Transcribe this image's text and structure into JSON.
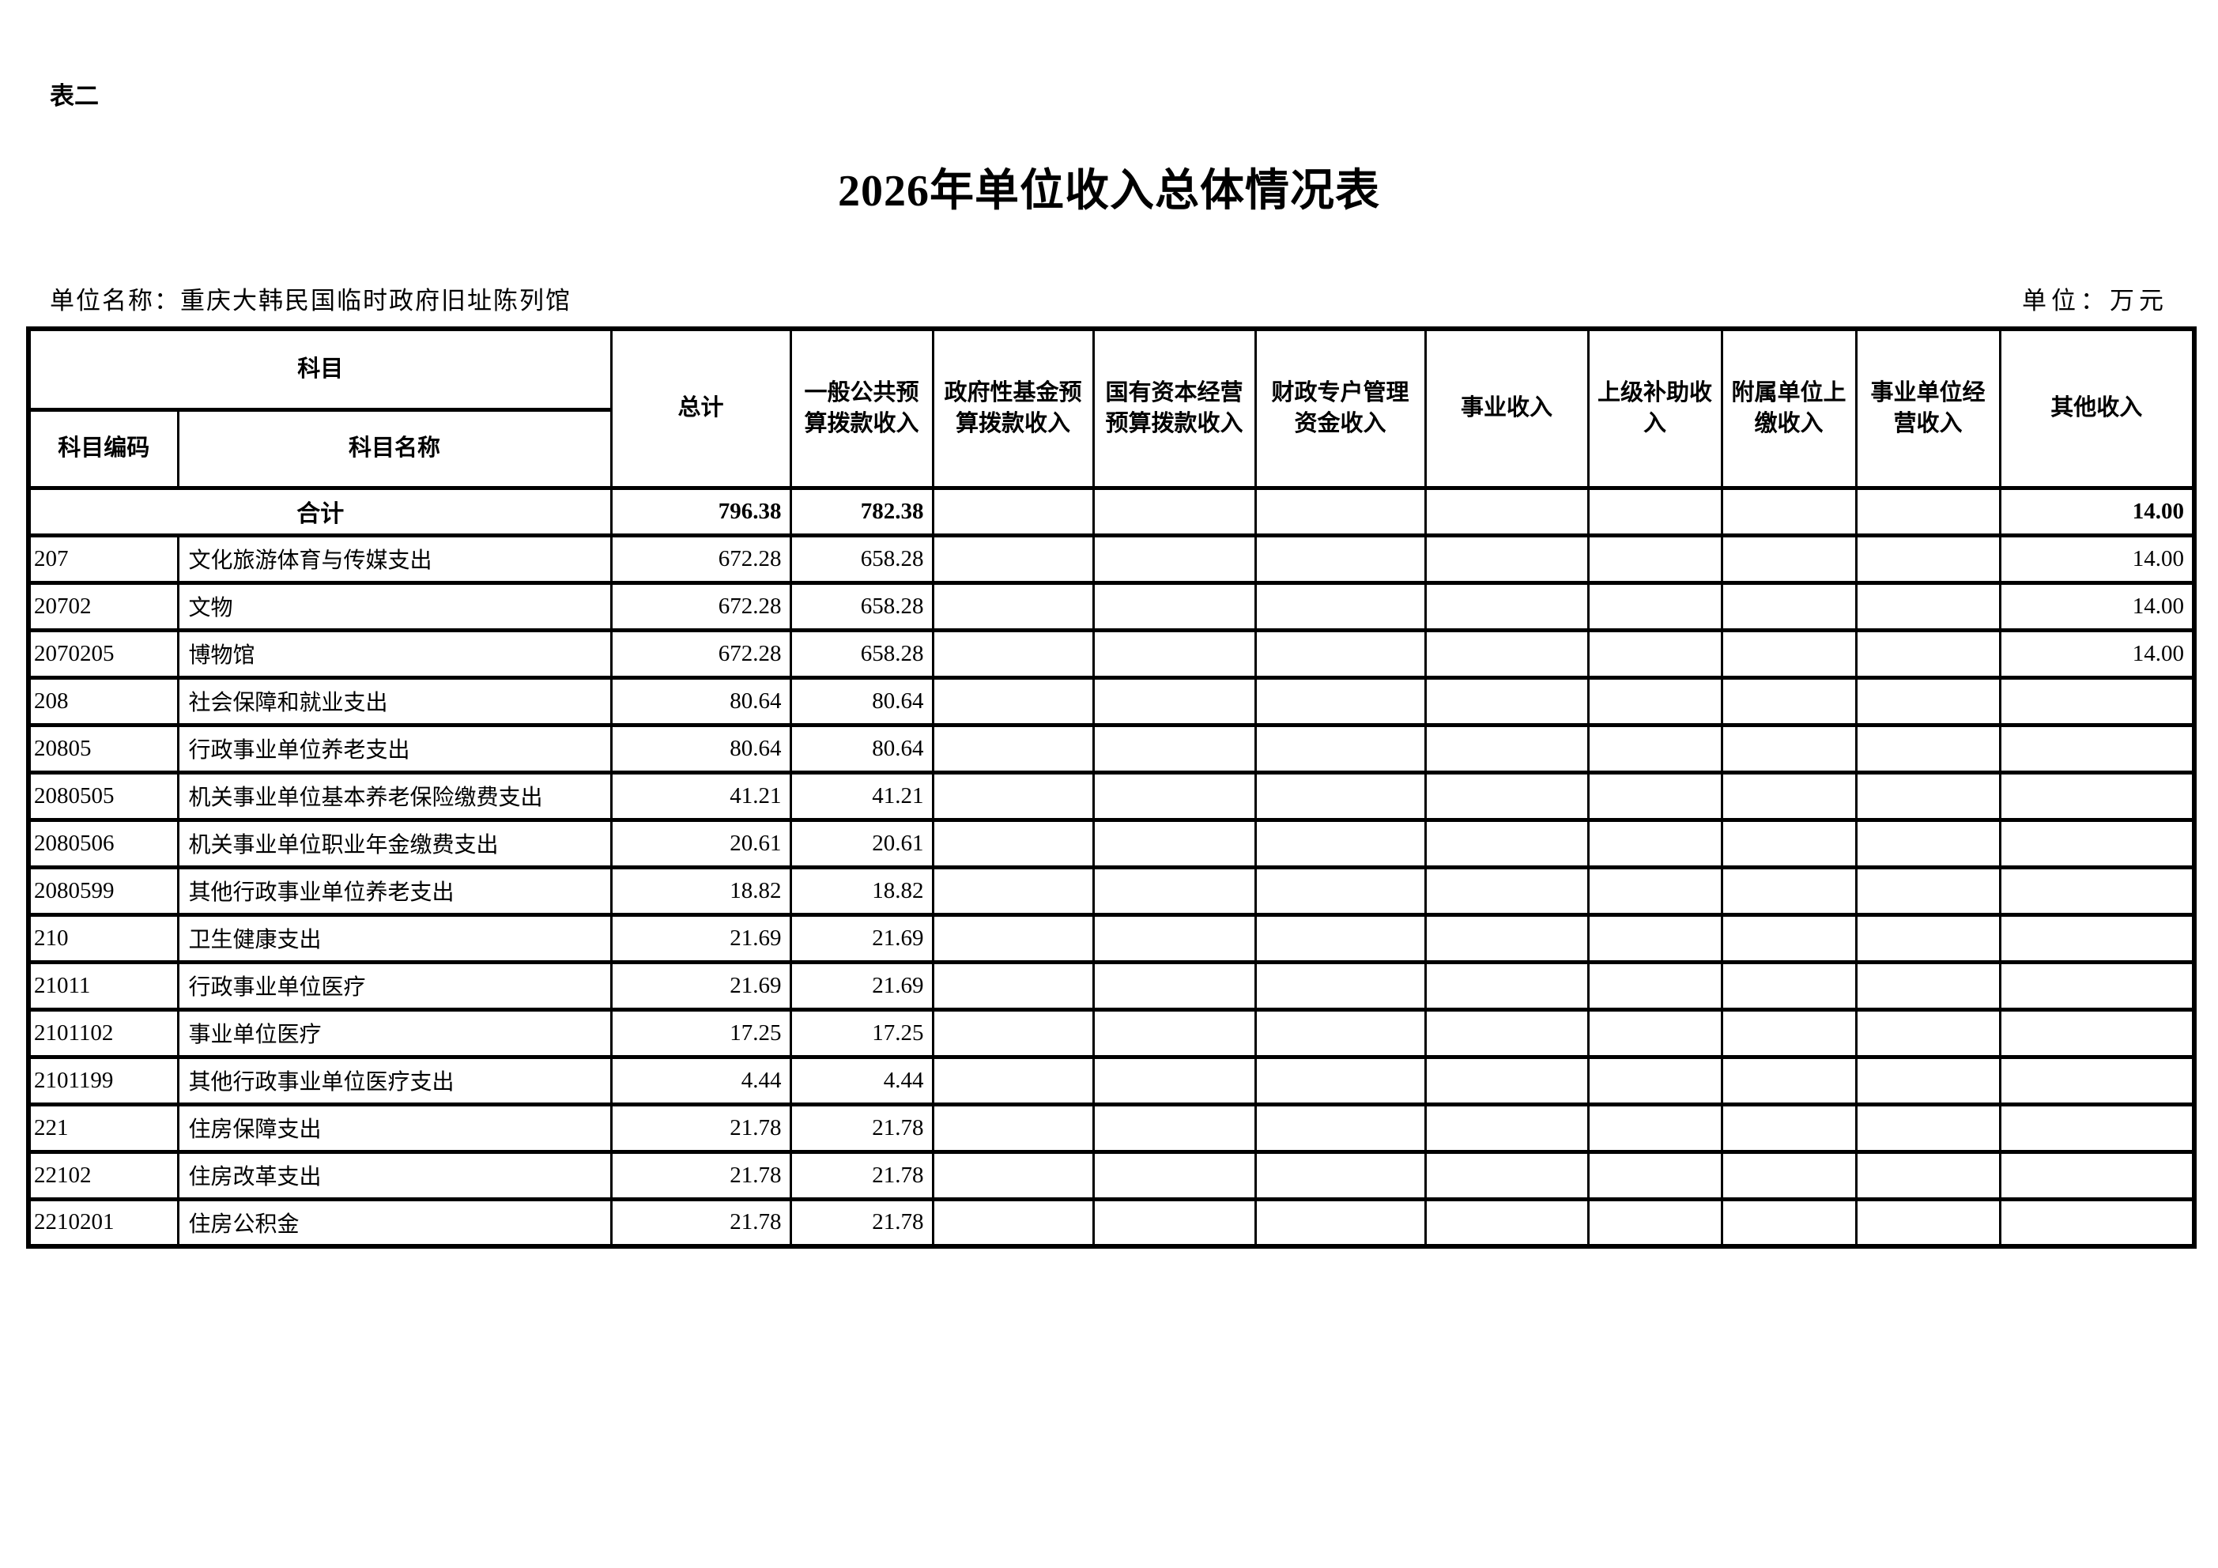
{
  "page": {
    "table_label": "表二",
    "title": "2026年单位收入总体情况表",
    "unit_name": "单位名称：重庆大韩民国临时政府旧址陈列馆",
    "unit_of_measure": "单位：万元"
  },
  "table": {
    "header": {
      "subject_group": "科目",
      "subject_code": "科目编码",
      "subject_name": "科目名称",
      "columns": [
        "总计",
        "一般公共预\n算拨款收入",
        "政府性基金预\n算拨款收入",
        "国有资本经营\n预算拨款收入",
        "财政专户管理\n资金收入",
        "事业收入",
        "上级补助收\n入",
        "附属单位上\n缴收入",
        "事业单位经\n营收入",
        "其他收入"
      ]
    },
    "total_row": {
      "name": "合计",
      "values": [
        "796.38",
        "782.38",
        "",
        "",
        "",
        "",
        "",
        "",
        "",
        "14.00"
      ]
    },
    "rows": [
      {
        "code": "207",
        "name": "文化旅游体育与传媒支出",
        "values": [
          "672.28",
          "658.28",
          "",
          "",
          "",
          "",
          "",
          "",
          "",
          "14.00"
        ]
      },
      {
        "code": "20702",
        "name": "文物",
        "values": [
          "672.28",
          "658.28",
          "",
          "",
          "",
          "",
          "",
          "",
          "",
          "14.00"
        ]
      },
      {
        "code": "2070205",
        "name": "博物馆",
        "values": [
          "672.28",
          "658.28",
          "",
          "",
          "",
          "",
          "",
          "",
          "",
          "14.00"
        ]
      },
      {
        "code": "208",
        "name": "社会保障和就业支出",
        "values": [
          "80.64",
          "80.64",
          "",
          "",
          "",
          "",
          "",
          "",
          "",
          ""
        ]
      },
      {
        "code": "20805",
        "name": "行政事业单位养老支出",
        "values": [
          "80.64",
          "80.64",
          "",
          "",
          "",
          "",
          "",
          "",
          "",
          ""
        ]
      },
      {
        "code": "2080505",
        "name": "机关事业单位基本养老保险缴费支出",
        "values": [
          "41.21",
          "41.21",
          "",
          "",
          "",
          "",
          "",
          "",
          "",
          ""
        ]
      },
      {
        "code": "2080506",
        "name": "机关事业单位职业年金缴费支出",
        "values": [
          "20.61",
          "20.61",
          "",
          "",
          "",
          "",
          "",
          "",
          "",
          ""
        ]
      },
      {
        "code": "2080599",
        "name": "其他行政事业单位养老支出",
        "values": [
          "18.82",
          "18.82",
          "",
          "",
          "",
          "",
          "",
          "",
          "",
          ""
        ]
      },
      {
        "code": "210",
        "name": "卫生健康支出",
        "values": [
          "21.69",
          "21.69",
          "",
          "",
          "",
          "",
          "",
          "",
          "",
          ""
        ]
      },
      {
        "code": "21011",
        "name": "行政事业单位医疗",
        "values": [
          "21.69",
          "21.69",
          "",
          "",
          "",
          "",
          "",
          "",
          "",
          ""
        ]
      },
      {
        "code": "2101102",
        "name": "事业单位医疗",
        "values": [
          "17.25",
          "17.25",
          "",
          "",
          "",
          "",
          "",
          "",
          "",
          ""
        ]
      },
      {
        "code": "2101199",
        "name": "其他行政事业单位医疗支出",
        "values": [
          "4.44",
          "4.44",
          "",
          "",
          "",
          "",
          "",
          "",
          "",
          ""
        ]
      },
      {
        "code": "221",
        "name": "住房保障支出",
        "values": [
          "21.78",
          "21.78",
          "",
          "",
          "",
          "",
          "",
          "",
          "",
          ""
        ]
      },
      {
        "code": "22102",
        "name": "住房改革支出",
        "values": [
          "21.78",
          "21.78",
          "",
          "",
          "",
          "",
          "",
          "",
          "",
          ""
        ]
      },
      {
        "code": "2210201",
        "name": "住房公积金",
        "values": [
          "21.78",
          "21.78",
          "",
          "",
          "",
          "",
          "",
          "",
          "",
          ""
        ]
      }
    ]
  }
}
